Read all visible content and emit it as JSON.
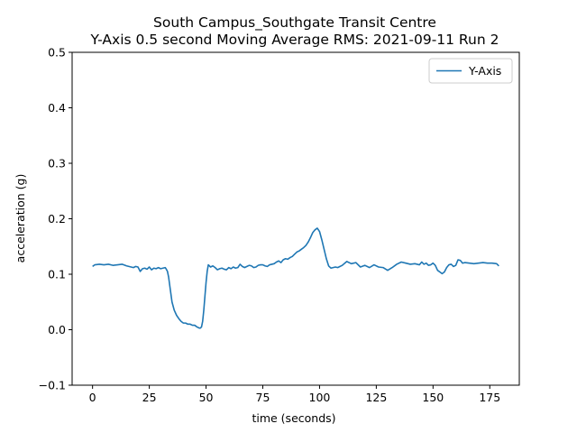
{
  "chart_data": {
    "type": "line",
    "title": "South Campus_Southgate Transit Centre",
    "subtitle": "Y-Axis 0.5 second Moving Average RMS: 2021-09-11 Run 2",
    "xlabel": "time (seconds)",
    "ylabel": "acceleration (g)",
    "xlim": [
      -9,
      188
    ],
    "ylim": [
      -0.1,
      0.5
    ],
    "xticks": [
      0,
      25,
      50,
      75,
      100,
      125,
      150,
      175
    ],
    "yticks": [
      -0.1,
      0.0,
      0.1,
      0.2,
      0.3,
      0.4,
      0.5
    ],
    "xtick_labels": [
      "0",
      "25",
      "50",
      "75",
      "100",
      "125",
      "150",
      "175"
    ],
    "ytick_labels": [
      "−0.1",
      "0.0",
      "0.1",
      "0.2",
      "0.3",
      "0.4",
      "0.5"
    ],
    "grid": false,
    "legend": {
      "position": "top-right",
      "entries": [
        "Y-Axis"
      ]
    },
    "series": [
      {
        "name": "Y-Axis",
        "color": "#1f77b4",
        "x": [
          0,
          1,
          3,
          5,
          7,
          9,
          11,
          13,
          15,
          17,
          18,
          19,
          20,
          21,
          22,
          23,
          24,
          25,
          26,
          27,
          28,
          29,
          30,
          31,
          32,
          32.5,
          33,
          33.5,
          34,
          34.5,
          35,
          36,
          37,
          38,
          39,
          40,
          41,
          42,
          43,
          44,
          45,
          46,
          47,
          47.5,
          48,
          48.5,
          49,
          49.5,
          50,
          50.5,
          51,
          52,
          53,
          54,
          55,
          56,
          57,
          58,
          59,
          60,
          61,
          62,
          63,
          64,
          65,
          66,
          67,
          68,
          69,
          70,
          71,
          72,
          73,
          74,
          75,
          76,
          77,
          78,
          79,
          80,
          81,
          82,
          83,
          84,
          85,
          86,
          87,
          88,
          89,
          90,
          91,
          92,
          93,
          94,
          95,
          96,
          97,
          98,
          99,
          100,
          101,
          102,
          103,
          104,
          105,
          106,
          107,
          108,
          109,
          110,
          112,
          114,
          116,
          118,
          120,
          122,
          124,
          126,
          128,
          130,
          132,
          134,
          136,
          138,
          140,
          142,
          144,
          145,
          146,
          147,
          148,
          149,
          150,
          151,
          152,
          153,
          154,
          155,
          156,
          157,
          158,
          159,
          160,
          161,
          162,
          163,
          164,
          166,
          168,
          170,
          172,
          174,
          176,
          178,
          179
        ],
        "y": [
          0.114,
          0.117,
          0.118,
          0.117,
          0.118,
          0.116,
          0.117,
          0.118,
          0.115,
          0.113,
          0.112,
          0.114,
          0.113,
          0.105,
          0.11,
          0.111,
          0.109,
          0.113,
          0.108,
          0.111,
          0.11,
          0.112,
          0.11,
          0.111,
          0.112,
          0.109,
          0.105,
          0.095,
          0.08,
          0.065,
          0.05,
          0.035,
          0.026,
          0.02,
          0.015,
          0.012,
          0.012,
          0.01,
          0.01,
          0.008,
          0.008,
          0.005,
          0.003,
          0.003,
          0.005,
          0.015,
          0.035,
          0.06,
          0.085,
          0.105,
          0.117,
          0.113,
          0.115,
          0.112,
          0.108,
          0.11,
          0.111,
          0.109,
          0.108,
          0.112,
          0.11,
          0.113,
          0.111,
          0.112,
          0.118,
          0.114,
          0.112,
          0.114,
          0.116,
          0.115,
          0.112,
          0.113,
          0.116,
          0.117,
          0.117,
          0.115,
          0.114,
          0.117,
          0.118,
          0.119,
          0.122,
          0.124,
          0.121,
          0.126,
          0.128,
          0.127,
          0.13,
          0.132,
          0.136,
          0.14,
          0.142,
          0.145,
          0.148,
          0.152,
          0.158,
          0.166,
          0.175,
          0.18,
          0.183,
          0.177,
          0.162,
          0.145,
          0.128,
          0.115,
          0.111,
          0.112,
          0.113,
          0.112,
          0.114,
          0.116,
          0.123,
          0.119,
          0.121,
          0.113,
          0.116,
          0.112,
          0.117,
          0.113,
          0.112,
          0.107,
          0.112,
          0.118,
          0.122,
          0.12,
          0.118,
          0.119,
          0.117,
          0.122,
          0.118,
          0.12,
          0.116,
          0.117,
          0.12,
          0.116,
          0.107,
          0.104,
          0.101,
          0.104,
          0.112,
          0.117,
          0.118,
          0.114,
          0.116,
          0.126,
          0.125,
          0.12,
          0.121,
          0.12,
          0.119,
          0.12,
          0.121,
          0.12,
          0.12,
          0.119,
          0.115
        ]
      }
    ]
  }
}
